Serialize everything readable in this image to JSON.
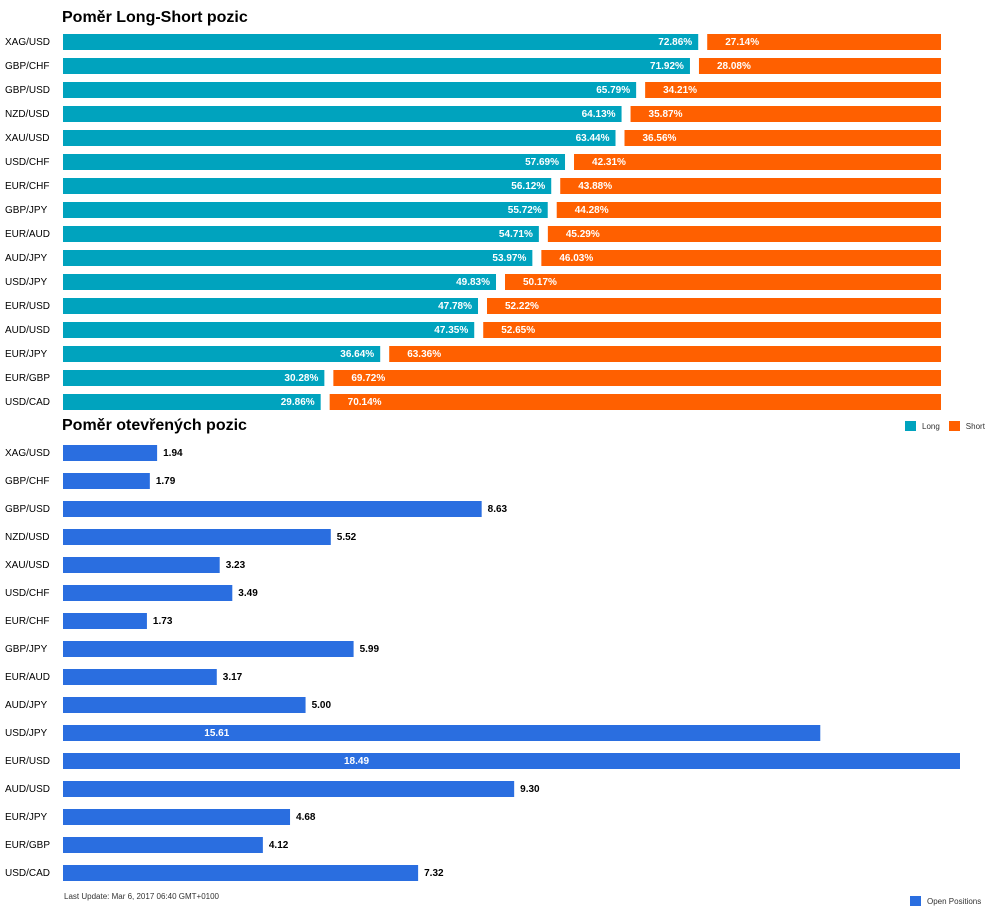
{
  "titles": {
    "long_short": "Poměr Long-Short pozic",
    "open_positions": "Poměr otevřených pozic"
  },
  "legend": {
    "long": "Long",
    "short": "Short",
    "open_positions": "Open Positions"
  },
  "footer": {
    "last_update": "Last Update: Mar 6, 2017 06:40 GMT+0100"
  },
  "colors": {
    "long": "#00a3be",
    "short": "#ff6000",
    "open_positions": "#2a6ee0"
  },
  "chart_data": [
    {
      "type": "bar",
      "orientation": "horizontal",
      "stacked": true,
      "percent": true,
      "title": "Poměr Long-Short pozic",
      "categories": [
        "XAG/USD",
        "GBP/CHF",
        "GBP/USD",
        "NZD/USD",
        "XAU/USD",
        "USD/CHF",
        "EUR/CHF",
        "GBP/JPY",
        "EUR/AUD",
        "AUD/JPY",
        "USD/JPY",
        "EUR/USD",
        "AUD/USD",
        "EUR/JPY",
        "EUR/GBP",
        "USD/CAD"
      ],
      "series": [
        {
          "name": "Long",
          "values": [
            72.86,
            71.92,
            65.79,
            64.13,
            63.44,
            57.69,
            56.12,
            55.72,
            54.71,
            53.97,
            49.83,
            47.78,
            47.35,
            36.64,
            30.28,
            29.86
          ]
        },
        {
          "name": "Short",
          "values": [
            27.14,
            28.08,
            34.21,
            35.87,
            36.56,
            42.31,
            43.88,
            44.28,
            45.29,
            46.03,
            50.17,
            52.22,
            52.65,
            63.36,
            69.72,
            70.14
          ]
        }
      ],
      "data_labels": {
        "long": [
          "72.86%",
          "71.92%",
          "65.79%",
          "64.13%",
          "63.44%",
          "57.69%",
          "56.12%",
          "55.72%",
          "54.71%",
          "53.97%",
          "49.83%",
          "47.78%",
          "47.35%",
          "36.64%",
          "30.28%",
          "29.86%"
        ],
        "short": [
          "27.14%",
          "28.08%",
          "34.21%",
          "35.87%",
          "36.56%",
          "42.31%",
          "43.88%",
          "44.28%",
          "45.29%",
          "46.03%",
          "50.17%",
          "52.22%",
          "52.65%",
          "63.36%",
          "69.72%",
          "70.14%"
        ]
      },
      "legend_position": "top-right",
      "grid": false
    },
    {
      "type": "bar",
      "orientation": "horizontal",
      "title": "Poměr otevřených pozic",
      "categories": [
        "XAG/USD",
        "GBP/CHF",
        "GBP/USD",
        "NZD/USD",
        "XAU/USD",
        "USD/CHF",
        "EUR/CHF",
        "GBP/JPY",
        "EUR/AUD",
        "AUD/JPY",
        "USD/JPY",
        "EUR/USD",
        "AUD/USD",
        "EUR/JPY",
        "EUR/GBP",
        "USD/CAD"
      ],
      "series": [
        {
          "name": "Open Positions",
          "values": [
            1.94,
            1.79,
            8.63,
            5.52,
            3.23,
            3.49,
            1.73,
            5.99,
            3.17,
            5.0,
            15.61,
            18.49,
            9.3,
            4.68,
            4.12,
            7.32
          ]
        }
      ],
      "data_labels": [
        "1.94",
        "1.79",
        "8.63",
        "5.52",
        "3.23",
        "3.49",
        "1.73",
        "5.99",
        "3.17",
        "5.00",
        "15.61",
        "18.49",
        "9.30",
        "4.68",
        "4.12",
        "7.32"
      ],
      "xlim": [
        0,
        18.49
      ],
      "legend_position": "bottom-right",
      "grid": false
    }
  ]
}
